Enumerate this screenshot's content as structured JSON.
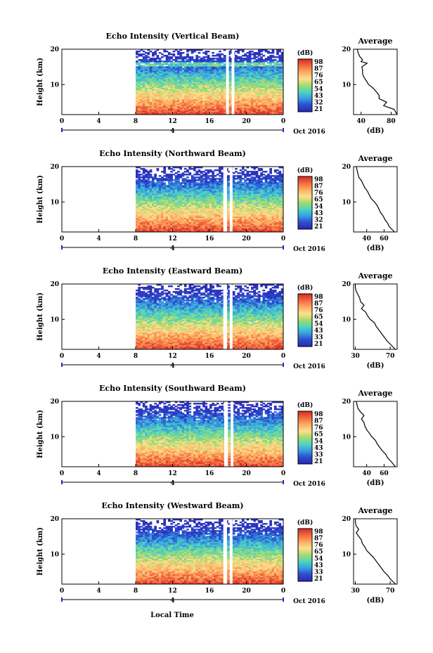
{
  "figure": {
    "xlabel": "Local Time",
    "date_label": "Oct 2016",
    "day_marker": "4",
    "colorbar_title": "(dB)",
    "avg_title": "Average",
    "avg_xlabel": "(dB)",
    "ylabel": "Height (km)"
  },
  "chart_data": [
    {
      "type": "heatmap",
      "title": "Echo Intensity (Vertical Beam)",
      "xlabel": "Local Time",
      "ylabel": "Height (km)",
      "x_ticks": [
        "0",
        "4",
        "8",
        "12",
        "16",
        "20",
        "0"
      ],
      "y_ticks": [
        "20",
        "10"
      ],
      "xlim": [
        0,
        24
      ],
      "ylim": [
        1.5,
        20
      ],
      "data_start_hour": 8,
      "gaps_hours": [
        [
          17.8,
          18.1
        ],
        [
          18.4,
          18.7
        ]
      ],
      "colorbar": {
        "label": "(dB)",
        "ticks": [
          "98",
          "87",
          "76",
          "65",
          "54",
          "43",
          "32",
          "21"
        ],
        "colors": [
          "#d73027",
          "#f46d43",
          "#fdae61",
          "#fee090",
          "#a6d96a",
          "#4dd6c0",
          "#3aa0e0",
          "#2c4fd0",
          "#2b2bb8"
        ]
      },
      "profile": {
        "title": "Average",
        "xlabel": "(dB)",
        "x_ticks": [
          "40",
          "80"
        ],
        "xlim": [
          30,
          88
        ],
        "heights_km": [
          1.5,
          3,
          4,
          5,
          6,
          7,
          8,
          9,
          10,
          11,
          12,
          13,
          14,
          15,
          16,
          16.5,
          17,
          18,
          19,
          20
        ],
        "values_db": [
          88,
          84,
          70,
          74,
          64,
          64,
          60,
          56,
          50,
          47,
          44,
          42,
          42,
          41,
          48,
          40,
          42,
          38,
          36,
          35
        ]
      }
    },
    {
      "type": "heatmap",
      "title": "Echo Intensity (Northward Beam)",
      "xlabel": "Local Time",
      "ylabel": "Height (km)",
      "x_ticks": [
        "0",
        "4",
        "8",
        "12",
        "16",
        "20",
        "0"
      ],
      "y_ticks": [
        "20",
        "10"
      ],
      "xlim": [
        0,
        24
      ],
      "ylim": [
        1.5,
        20
      ],
      "data_start_hour": 8,
      "gaps_hours": [
        [
          17.5,
          17.9
        ],
        [
          18.2,
          18.5
        ]
      ],
      "colorbar": {
        "label": "(dB)",
        "ticks": [
          "98",
          "87",
          "76",
          "65",
          "54",
          "43",
          "32",
          "21"
        ],
        "colors": [
          "#d73027",
          "#f46d43",
          "#fdae61",
          "#fee090",
          "#a6d96a",
          "#4dd6c0",
          "#3aa0e0",
          "#2c4fd0",
          "#2b2bb8"
        ]
      },
      "profile": {
        "title": "Average",
        "xlabel": "(dB)",
        "x_ticks": [
          "40",
          "60"
        ],
        "xlim": [
          25,
          75
        ],
        "heights_km": [
          1.5,
          3,
          4,
          5,
          6,
          7,
          8,
          9,
          10,
          11,
          12,
          13,
          14,
          15,
          16,
          17,
          18,
          19,
          20
        ],
        "values_db": [
          72,
          66,
          64,
          61,
          59,
          56,
          54,
          52,
          49,
          45,
          43,
          41,
          38,
          36,
          34,
          31,
          30,
          29,
          28
        ]
      }
    },
    {
      "type": "heatmap",
      "title": "Echo Intensity (Eastward Beam)",
      "xlabel": "Local Time",
      "ylabel": "Height (km)",
      "x_ticks": [
        "0",
        "4",
        "8",
        "12",
        "16",
        "20",
        "0"
      ],
      "y_ticks": [
        "20",
        "10"
      ],
      "xlim": [
        0,
        24
      ],
      "ylim": [
        1.5,
        20
      ],
      "data_start_hour": 8,
      "gaps_hours": [
        [
          17.5,
          17.9
        ],
        [
          18.2,
          18.5
        ]
      ],
      "colorbar": {
        "label": "(dB)",
        "ticks": [
          "98",
          "87",
          "76",
          "65",
          "54",
          "43",
          "33",
          "21"
        ],
        "colors": [
          "#d73027",
          "#f46d43",
          "#fdae61",
          "#fee090",
          "#a6d96a",
          "#4dd6c0",
          "#3aa0e0",
          "#2c4fd0",
          "#2b2bb8"
        ]
      },
      "profile": {
        "title": "Average",
        "xlabel": "(dB)",
        "x_ticks": [
          "30",
          "70"
        ],
        "xlim": [
          28,
          78
        ],
        "heights_km": [
          1.5,
          3,
          4,
          5,
          6,
          7,
          8,
          9,
          10,
          11,
          12,
          13,
          14,
          15,
          16,
          17,
          18,
          19,
          20
        ],
        "values_db": [
          76,
          70,
          66,
          63,
          60,
          57,
          54,
          52,
          47,
          44,
          42,
          37,
          40,
          36,
          35,
          33,
          31,
          30,
          30
        ]
      }
    },
    {
      "type": "heatmap",
      "title": "Echo Intensity (Southward Beam)",
      "xlabel": "Local Time",
      "ylabel": "Height (km)",
      "x_ticks": [
        "0",
        "4",
        "8",
        "12",
        "16",
        "20",
        "0"
      ],
      "y_ticks": [
        "20",
        "10"
      ],
      "xlim": [
        0,
        24
      ],
      "ylim": [
        1.5,
        20
      ],
      "data_start_hour": 8,
      "gaps_hours": [
        [
          17.6,
          18.0
        ],
        [
          18.3,
          18.6
        ]
      ],
      "colorbar": {
        "label": "(dB)",
        "ticks": [
          "98",
          "87",
          "76",
          "65",
          "54",
          "43",
          "33",
          "21"
        ],
        "colors": [
          "#d73027",
          "#f46d43",
          "#fdae61",
          "#fee090",
          "#a6d96a",
          "#4dd6c0",
          "#3aa0e0",
          "#2c4fd0",
          "#2b2bb8"
        ]
      },
      "profile": {
        "title": "Average",
        "xlabel": "(dB)",
        "x_ticks": [
          "40",
          "60"
        ],
        "xlim": [
          25,
          75
        ],
        "heights_km": [
          1.5,
          3,
          4,
          5,
          6,
          7,
          8,
          9,
          10,
          11,
          12,
          13,
          14,
          15,
          16,
          17,
          18,
          19,
          20
        ],
        "values_db": [
          73,
          68,
          64,
          62,
          58,
          55,
          52,
          50,
          46,
          43,
          40,
          38,
          37,
          34,
          37,
          33,
          30,
          29,
          28
        ]
      }
    },
    {
      "type": "heatmap",
      "title": "Echo Intensity (Westward Beam)",
      "xlabel": "Local Time",
      "ylabel": "Height (km)",
      "x_ticks": [
        "0",
        "4",
        "8",
        "12",
        "16",
        "20",
        "0"
      ],
      "y_ticks": [
        "20",
        "10"
      ],
      "xlim": [
        0,
        24
      ],
      "ylim": [
        1.5,
        20
      ],
      "data_start_hour": 8,
      "gaps_hours": [
        [
          17.5,
          17.9
        ],
        [
          18.2,
          18.5
        ]
      ],
      "colorbar": {
        "label": "(dB)",
        "ticks": [
          "98",
          "87",
          "76",
          "65",
          "54",
          "43",
          "33",
          "21"
        ],
        "colors": [
          "#d73027",
          "#f46d43",
          "#fdae61",
          "#fee090",
          "#a6d96a",
          "#4dd6c0",
          "#3aa0e0",
          "#2c4fd0",
          "#2b2bb8"
        ]
      },
      "profile": {
        "title": "Average",
        "xlabel": "(dB)",
        "x_ticks": [
          "30",
          "70"
        ],
        "xlim": [
          28,
          78
        ],
        "heights_km": [
          1.5,
          3,
          4,
          5,
          6,
          7,
          8,
          9,
          10,
          11,
          12,
          13,
          14,
          15,
          16,
          17,
          18,
          19,
          20
        ],
        "values_db": [
          76,
          70,
          67,
          63,
          60,
          57,
          54,
          51,
          47,
          43,
          41,
          38,
          37,
          34,
          31,
          34,
          31,
          30,
          30
        ]
      }
    }
  ]
}
